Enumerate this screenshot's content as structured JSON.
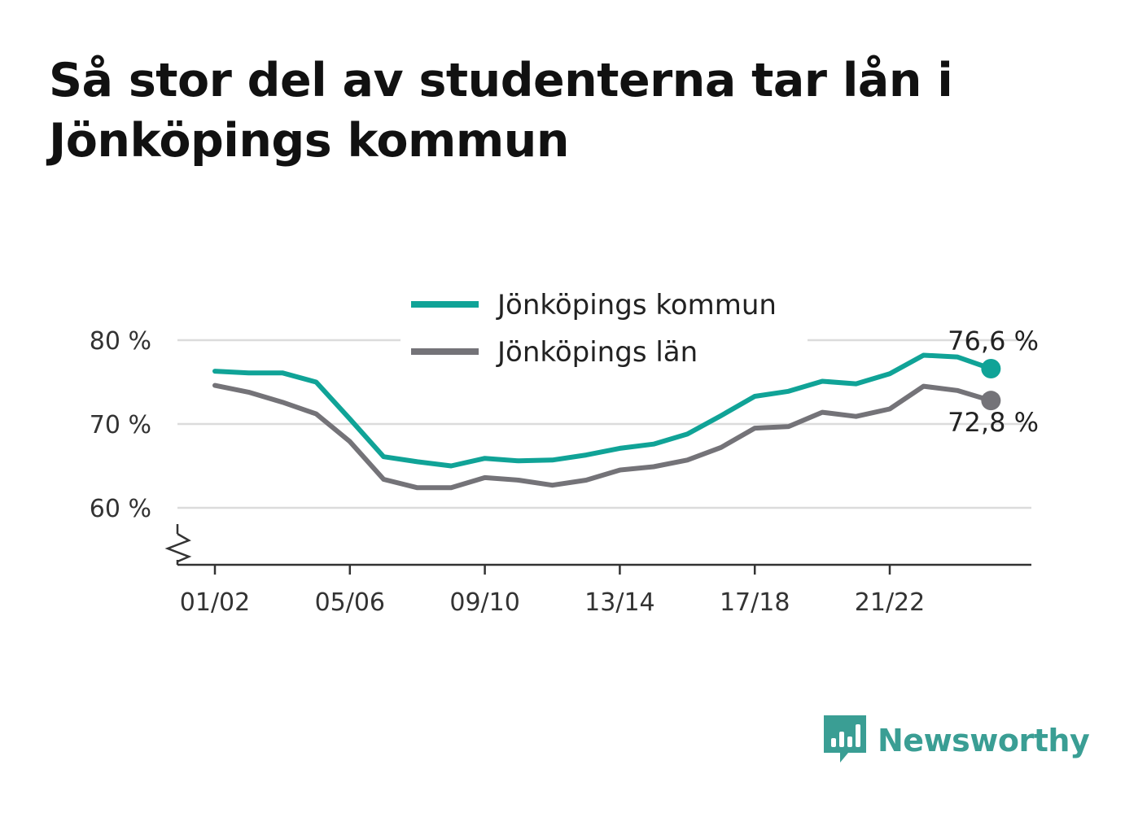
{
  "title": "Så stor del av studenterna tar lån i Jönköpings kommun",
  "brand": {
    "name": "Newsworthy",
    "icon": "newsworthy-logo-icon",
    "color": "#3a9e94"
  },
  "chart_data": {
    "type": "line",
    "x": [
      "01/02",
      "02/03",
      "03/04",
      "04/05",
      "05/06",
      "06/07",
      "07/08",
      "08/09",
      "09/10",
      "10/11",
      "11/12",
      "12/13",
      "13/14",
      "14/15",
      "15/16",
      "16/17",
      "17/18",
      "18/19",
      "19/20",
      "20/21",
      "21/22",
      "22/23",
      "23/24",
      "24/25"
    ],
    "x_tick_labels": [
      "01/02",
      "05/06",
      "09/10",
      "13/14",
      "17/18",
      "21/22"
    ],
    "y_tick_labels": [
      "60 %",
      "70 %",
      "80 %"
    ],
    "y_ticks": [
      60,
      70,
      80
    ],
    "ylim": [
      53,
      82
    ],
    "y_axis_break": true,
    "grid": true,
    "legend_position": "top-center",
    "series": [
      {
        "name": "Jönköpings kommun",
        "color": "#10a397",
        "values": [
          76.3,
          76.1,
          76.1,
          75.0,
          70.6,
          66.1,
          65.5,
          65.0,
          65.9,
          65.6,
          65.7,
          66.3,
          67.1,
          67.6,
          68.8,
          71.0,
          73.3,
          73.9,
          75.1,
          74.8,
          76.0,
          78.2,
          78.0,
          76.6
        ],
        "end_label": "76,6 %"
      },
      {
        "name": "Jönköpings län",
        "color": "#747378",
        "values": [
          74.6,
          73.8,
          72.6,
          71.2,
          67.9,
          63.4,
          62.4,
          62.4,
          63.6,
          63.3,
          62.7,
          63.3,
          64.5,
          64.9,
          65.7,
          67.2,
          69.5,
          69.7,
          71.4,
          70.9,
          71.8,
          74.5,
          74.0,
          72.8
        ],
        "end_label": "72,8 %"
      }
    ]
  }
}
